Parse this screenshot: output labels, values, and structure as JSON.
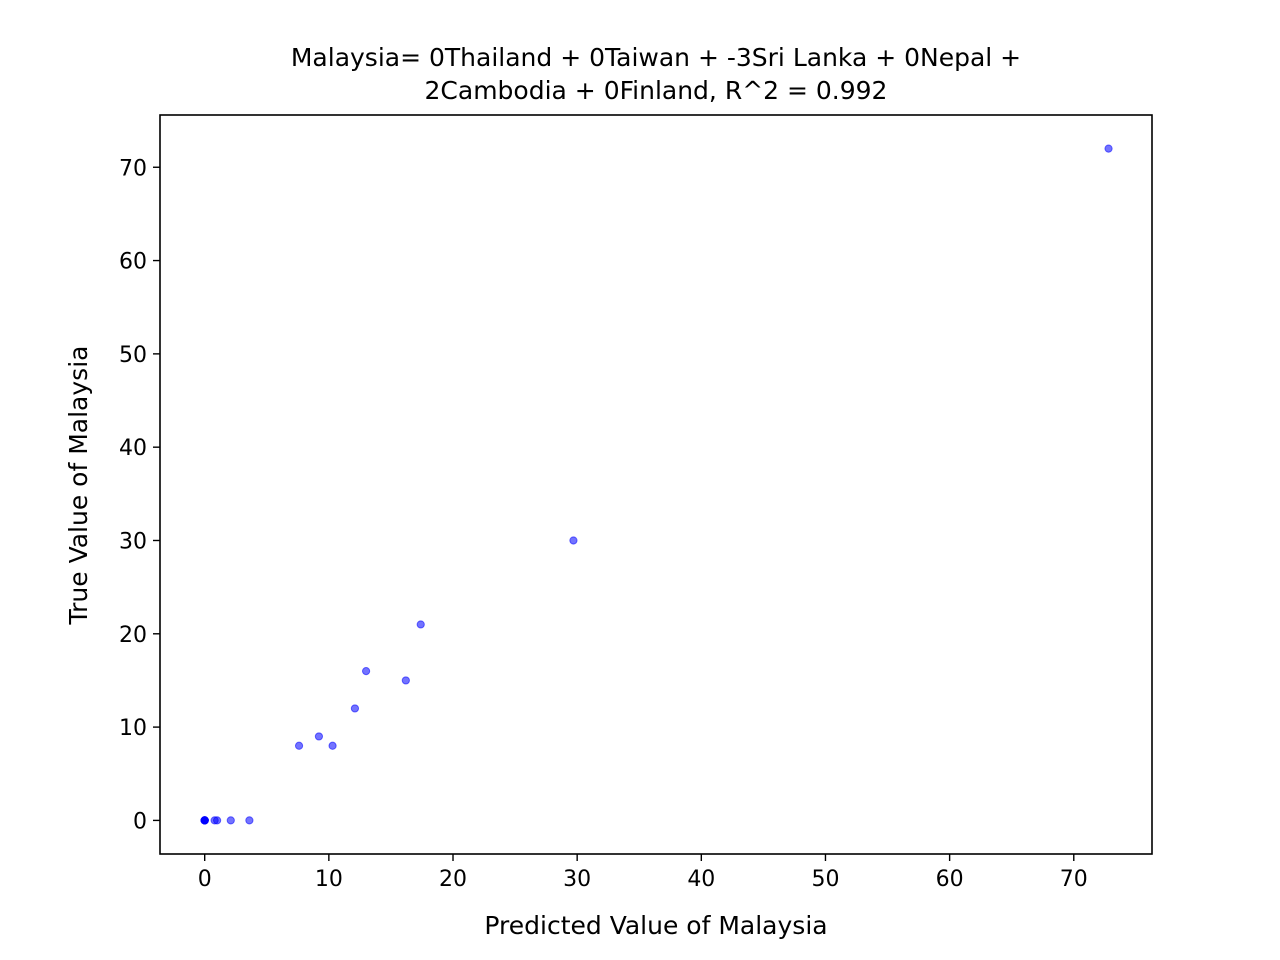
{
  "chart_data": {
    "type": "scatter",
    "title_lines": [
      "Malaysia= 0Thailand + 0Taiwan + -3Sri Lanka + 0Nepal +",
      "2Cambodia + 0Finland, R^2 = 0.992"
    ],
    "xlabel": "Predicted Value of Malaysia",
    "ylabel": "True Value of Malaysia",
    "xlim": [
      -3.6,
      76.3
    ],
    "ylim": [
      -3.6,
      75.6
    ],
    "xticks": [
      0,
      10,
      20,
      30,
      40,
      50,
      60,
      70
    ],
    "yticks": [
      0,
      10,
      20,
      30,
      40,
      50,
      60,
      70
    ],
    "grid": false,
    "marker_color": "#0000ff",
    "marker_alpha": 0.55,
    "points": [
      {
        "x": 0,
        "y": 0
      },
      {
        "x": 0,
        "y": 0
      },
      {
        "x": 0,
        "y": 0
      },
      {
        "x": 0,
        "y": 0
      },
      {
        "x": 0,
        "y": 0
      },
      {
        "x": 0,
        "y": 0
      },
      {
        "x": 0.8,
        "y": 0
      },
      {
        "x": 1.0,
        "y": 0
      },
      {
        "x": 2.1,
        "y": 0
      },
      {
        "x": 3.6,
        "y": 0
      },
      {
        "x": 7.6,
        "y": 8
      },
      {
        "x": 9.2,
        "y": 9
      },
      {
        "x": 10.3,
        "y": 8
      },
      {
        "x": 12.1,
        "y": 12
      },
      {
        "x": 13.0,
        "y": 16
      },
      {
        "x": 16.2,
        "y": 15
      },
      {
        "x": 17.4,
        "y": 21
      },
      {
        "x": 29.7,
        "y": 30
      },
      {
        "x": 72.8,
        "y": 72
      }
    ]
  }
}
